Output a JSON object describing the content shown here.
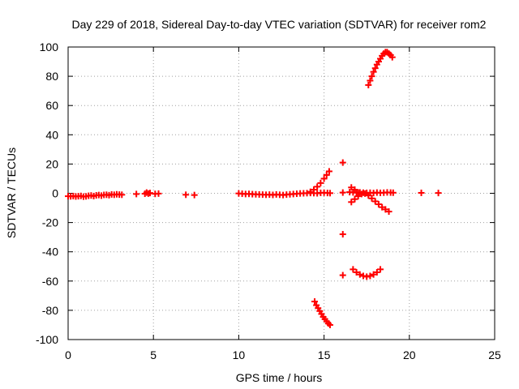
{
  "chart_data": {
    "type": "scatter",
    "title": "Day 229 of 2018, Sidereal Day-to-day VTEC variation (SDTVAR) for receiver rom2",
    "xlabel": "GPS time / hours",
    "ylabel": "SDTVAR / TECUs",
    "xlim": [
      0,
      25
    ],
    "ylim": [
      -100,
      100
    ],
    "grid": true,
    "xticks": [
      0,
      5,
      10,
      15,
      20,
      25
    ],
    "xtick_labels": [
      "0",
      "5",
      "10",
      "15",
      "20",
      "25"
    ],
    "yticks": [
      -100,
      -80,
      -60,
      -40,
      -20,
      0,
      20,
      40,
      60,
      80,
      100
    ],
    "ytick_labels": [
      "-100",
      "-80",
      "-60",
      "-40",
      "-20",
      "0",
      "20",
      "40",
      "60",
      "80",
      "100"
    ],
    "marker": "plus",
    "color": "#ff0000",
    "series": [
      {
        "name": "SDTVAR",
        "points": [
          [
            0.0,
            -2.0
          ],
          [
            0.15,
            -2.1
          ],
          [
            0.3,
            -1.9
          ],
          [
            0.45,
            -2.2
          ],
          [
            0.6,
            -2.0
          ],
          [
            0.75,
            -1.8
          ],
          [
            0.9,
            -2.3
          ],
          [
            1.05,
            -2.1
          ],
          [
            1.2,
            -1.7
          ],
          [
            1.35,
            -1.5
          ],
          [
            1.5,
            -1.9
          ],
          [
            1.65,
            -1.4
          ],
          [
            1.8,
            -1.2
          ],
          [
            1.95,
            -1.6
          ],
          [
            2.1,
            -1.1
          ],
          [
            2.25,
            -1.0
          ],
          [
            2.4,
            -1.3
          ],
          [
            2.55,
            -0.8
          ],
          [
            2.7,
            -1.0
          ],
          [
            2.85,
            -0.7
          ],
          [
            3.0,
            -0.9
          ],
          [
            3.15,
            -1.0
          ],
          [
            4.0,
            -0.5
          ],
          [
            4.5,
            -0.3
          ],
          [
            4.6,
            0.5
          ],
          [
            4.7,
            -0.2
          ],
          [
            4.8,
            0.2
          ],
          [
            5.1,
            -0.4
          ],
          [
            5.3,
            -0.2
          ],
          [
            6.9,
            -1.0
          ],
          [
            7.4,
            -1.2
          ],
          [
            10.0,
            -0.1
          ],
          [
            10.2,
            -0.3
          ],
          [
            10.4,
            -0.5
          ],
          [
            10.6,
            -0.4
          ],
          [
            10.8,
            -0.6
          ],
          [
            11.0,
            -0.7
          ],
          [
            11.2,
            -0.8
          ],
          [
            11.4,
            -0.9
          ],
          [
            11.6,
            -1.0
          ],
          [
            11.8,
            -0.9
          ],
          [
            12.0,
            -1.1
          ],
          [
            12.2,
            -0.8
          ],
          [
            12.4,
            -1.0
          ],
          [
            12.6,
            -1.2
          ],
          [
            12.8,
            -0.9
          ],
          [
            13.0,
            -0.7
          ],
          [
            13.2,
            -0.5
          ],
          [
            13.4,
            -0.3
          ],
          [
            13.6,
            -0.1
          ],
          [
            13.8,
            0.0
          ],
          [
            14.0,
            0.1
          ],
          [
            14.2,
            0.2
          ],
          [
            14.4,
            0.1
          ],
          [
            14.6,
            0.0
          ],
          [
            14.8,
            0.3
          ],
          [
            15.0,
            0.4
          ],
          [
            15.2,
            0.2
          ],
          [
            15.35,
            0.1
          ],
          [
            14.2,
            1.0
          ],
          [
            14.4,
            2.5
          ],
          [
            14.6,
            4.5
          ],
          [
            14.8,
            7.0
          ],
          [
            15.0,
            10.0
          ],
          [
            15.15,
            12.5
          ],
          [
            15.3,
            15.0
          ],
          [
            14.45,
            -74.0
          ],
          [
            14.55,
            -76.5
          ],
          [
            14.65,
            -78.5
          ],
          [
            14.75,
            -80.5
          ],
          [
            14.85,
            -82.5
          ],
          [
            14.95,
            -84.5
          ],
          [
            15.05,
            -86.0
          ],
          [
            15.15,
            -87.5
          ],
          [
            15.25,
            -89.0
          ],
          [
            15.35,
            -90.0
          ],
          [
            16.1,
            21.0
          ],
          [
            16.1,
            0.5
          ],
          [
            16.1,
            -28.0
          ],
          [
            16.1,
            -56.0
          ],
          [
            16.5,
            0.8
          ],
          [
            16.7,
            0.6
          ],
          [
            16.9,
            0.4
          ],
          [
            17.1,
            0.6
          ],
          [
            17.3,
            0.4
          ],
          [
            17.5,
            0.3
          ],
          [
            17.7,
            0.4
          ],
          [
            17.9,
            0.2
          ],
          [
            18.1,
            0.5
          ],
          [
            18.3,
            0.3
          ],
          [
            18.5,
            0.4
          ],
          [
            18.7,
            0.6
          ],
          [
            18.9,
            0.5
          ],
          [
            19.05,
            0.4
          ],
          [
            16.6,
            4.0
          ],
          [
            16.8,
            2.5
          ],
          [
            17.0,
            0.5
          ],
          [
            16.6,
            -6.0
          ],
          [
            16.8,
            -4.0
          ],
          [
            17.0,
            -2.0
          ],
          [
            17.2,
            -0.5
          ],
          [
            17.4,
            -0.2
          ],
          [
            17.6,
            -1.5
          ],
          [
            17.8,
            -3.5
          ],
          [
            18.0,
            -5.5
          ],
          [
            18.2,
            -7.5
          ],
          [
            18.4,
            -9.5
          ],
          [
            18.6,
            -11.0
          ],
          [
            18.8,
            -12.5
          ],
          [
            16.7,
            -52.0
          ],
          [
            16.9,
            -54.0
          ],
          [
            17.1,
            -55.5
          ],
          [
            17.3,
            -56.5
          ],
          [
            17.5,
            -57.0
          ],
          [
            17.7,
            -56.5
          ],
          [
            17.9,
            -55.5
          ],
          [
            18.1,
            -54.0
          ],
          [
            18.3,
            -52.0
          ],
          [
            17.6,
            74.0
          ],
          [
            17.7,
            77.0
          ],
          [
            17.8,
            80.0
          ],
          [
            17.9,
            83.0
          ],
          [
            18.0,
            85.5
          ],
          [
            18.1,
            88.0
          ],
          [
            18.2,
            90.0
          ],
          [
            18.3,
            92.0
          ],
          [
            18.4,
            94.0
          ],
          [
            18.5,
            95.5
          ],
          [
            18.6,
            96.5
          ],
          [
            18.7,
            96.5
          ],
          [
            18.8,
            95.5
          ],
          [
            18.9,
            94.5
          ],
          [
            19.0,
            93.0
          ],
          [
            20.7,
            0.3
          ],
          [
            21.7,
            0.2
          ]
        ]
      }
    ]
  }
}
